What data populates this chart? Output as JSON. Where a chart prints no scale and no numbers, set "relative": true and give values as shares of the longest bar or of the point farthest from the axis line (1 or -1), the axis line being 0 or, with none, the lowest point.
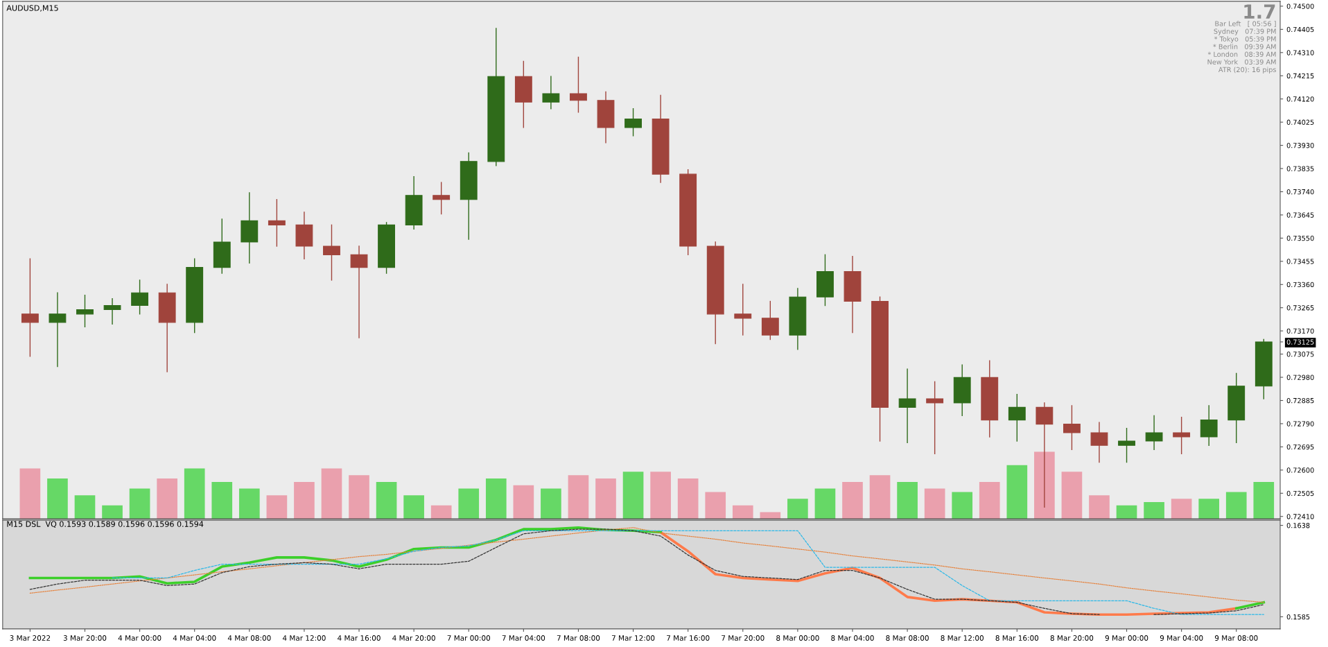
{
  "chart_data": [
    {
      "type": "candlestick",
      "title": "AUDUSD,M15",
      "ohlc": [
        [
          0.73239,
          0.73465,
          0.73066,
          0.73205
        ],
        [
          0.73205,
          0.73326,
          0.73024,
          0.73239
        ],
        [
          0.73239,
          0.73316,
          0.73187,
          0.73257
        ],
        [
          0.73257,
          0.73302,
          0.73198,
          0.73274
        ],
        [
          0.73274,
          0.73378,
          0.73239,
          0.73326
        ],
        [
          0.73326,
          0.73361,
          0.73003,
          0.73205
        ],
        [
          0.73205,
          0.73465,
          0.73163,
          0.7343
        ],
        [
          0.7343,
          0.73628,
          0.73406,
          0.73534
        ],
        [
          0.73534,
          0.73736,
          0.73448,
          0.73621
        ],
        [
          0.73621,
          0.73708,
          0.73517,
          0.73604
        ],
        [
          0.73604,
          0.73656,
          0.73465,
          0.73517
        ],
        [
          0.73517,
          0.73604,
          0.73378,
          0.73482
        ],
        [
          0.73482,
          0.73517,
          0.73142,
          0.7343
        ],
        [
          0.7343,
          0.73614,
          0.73406,
          0.73604
        ],
        [
          0.73604,
          0.73802,
          0.73587,
          0.73725
        ],
        [
          0.73725,
          0.73778,
          0.73649,
          0.73708
        ],
        [
          0.73708,
          0.73899,
          0.73545,
          0.73864
        ],
        [
          0.73864,
          0.74409,
          0.73847,
          0.74212
        ],
        [
          0.74212,
          0.74274,
          0.74003,
          0.74107
        ],
        [
          0.74107,
          0.74212,
          0.7408,
          0.74142
        ],
        [
          0.74142,
          0.74291,
          0.74066,
          0.74114
        ],
        [
          0.74114,
          0.74149,
          0.73941,
          0.74003
        ],
        [
          0.74003,
          0.7408,
          0.73969,
          0.74038
        ],
        [
          0.74038,
          0.74135,
          0.73778,
          0.73812
        ],
        [
          0.73812,
          0.7383,
          0.73482,
          0.73517
        ],
        [
          0.73517,
          0.73534,
          0.73118,
          0.73239
        ],
        [
          0.73239,
          0.73361,
          0.73153,
          0.73222
        ],
        [
          0.73222,
          0.73291,
          0.73135,
          0.73153
        ],
        [
          0.73153,
          0.73344,
          0.73094,
          0.73309
        ],
        [
          0.73309,
          0.73482,
          0.73274,
          0.73413
        ],
        [
          0.73413,
          0.73475,
          0.73163,
          0.73291
        ],
        [
          0.73291,
          0.73309,
          0.72719,
          0.72857
        ],
        [
          0.72857,
          0.73014,
          0.72712,
          0.72892
        ],
        [
          0.72892,
          0.72962,
          0.72667,
          0.72875
        ],
        [
          0.72875,
          0.73031,
          0.72823,
          0.72979
        ],
        [
          0.72979,
          0.73048,
          0.72736,
          0.72805
        ],
        [
          0.72805,
          0.7291,
          0.72719,
          0.72857
        ],
        [
          0.72857,
          0.72875,
          0.72448,
          0.72788
        ],
        [
          0.72788,
          0.72864,
          0.72684,
          0.72753
        ],
        [
          0.72753,
          0.72795,
          0.72632,
          0.72701
        ],
        [
          0.72701,
          0.72771,
          0.72632,
          0.72719
        ],
        [
          0.72719,
          0.72823,
          0.72684,
          0.72753
        ],
        [
          0.72753,
          0.72816,
          0.72667,
          0.72736
        ],
        [
          0.72736,
          0.72864,
          0.72701,
          0.72805
        ],
        [
          0.72805,
          0.72996,
          0.72712,
          0.72944
        ],
        [
          0.72944,
          0.73135,
          0.72892,
          0.73125
        ]
      ],
      "colors": [
        "#a0443c",
        "#2f6b1a",
        "#2f6b1a",
        "#2f6b1a",
        "#2f6b1a",
        "#a0443c",
        "#2f6b1a",
        "#2f6b1a",
        "#2f6b1a",
        "#a0443c",
        "#a0443c",
        "#a0443c",
        "#a0443c",
        "#2f6b1a",
        "#2f6b1a",
        "#a0443c",
        "#2f6b1a",
        "#2f6b1a",
        "#a0443c",
        "#2f6b1a",
        "#a0443c",
        "#a0443c",
        "#2f6b1a",
        "#a0443c",
        "#a0443c",
        "#a0443c",
        "#a0443c",
        "#a0443c",
        "#2f6b1a",
        "#2f6b1a",
        "#a0443c",
        "#a0443c",
        "#2f6b1a",
        "#a0443c",
        "#2f6b1a",
        "#a0443c",
        "#2f6b1a",
        "#a0443c",
        "#a0443c",
        "#a0443c",
        "#2f6b1a",
        "#2f6b1a",
        "#a0443c",
        "#2f6b1a",
        "#2f6b1a",
        "#2f6b1a"
      ],
      "ylim": [
        0.724,
        0.7452
      ],
      "yticks": [
        {
          "value": 0.745,
          "label": "0.74500"
        },
        0.74405,
        {
          "value": 0.7431,
          "label": "0.74310"
        },
        0.74215,
        {
          "value": 0.7412,
          "label": "0.74120"
        },
        0.74025,
        {
          "value": 0.7393,
          "label": "0.73930"
        },
        0.73835,
        {
          "value": 0.7374,
          "label": "0.73740"
        },
        0.73645,
        {
          "value": 0.7355,
          "label": "0.73550"
        },
        0.73455,
        {
          "value": 0.7336,
          "label": "0.73360"
        },
        0.73265,
        {
          "value": 0.7317,
          "label": "0.73170"
        },
        {
          "value": 0.73125,
          "label": "0.73125"
        },
        0.73075,
        {
          "value": 0.7298,
          "label": "0.72980"
        },
        0.72885,
        {
          "value": 0.7279,
          "label": "0.72790"
        },
        0.72695,
        {
          "value": 0.726,
          "label": "0.72600"
        },
        0.72505,
        {
          "value": 0.7241,
          "label": "0.72410"
        }
      ],
      "annotations": [
        "1.7",
        "Bar Left   [ 05:56 ]",
        "Sydney   07:39 PM",
        "* Tokyo   05:39 PM",
        "* Berlin   09:39 AM",
        "* London   08:39 AM",
        "New York   03:39 AM",
        "ATR (20): 16 pips"
      ]
    },
    {
      "type": "bar",
      "relative": true,
      "values": [
        0.75,
        0.6,
        0.35,
        0.2,
        0.45,
        0.6,
        0.75,
        0.55,
        0.45,
        0.35,
        0.55,
        0.75,
        0.65,
        0.55,
        0.35,
        0.2,
        0.45,
        0.6,
        0.5,
        0.45,
        0.65,
        0.6,
        0.7,
        0.7,
        0.6,
        0.4,
        0.2,
        0.1,
        0.3,
        0.45,
        0.55,
        0.65,
        0.55,
        0.45,
        0.4,
        0.55,
        0.8,
        1.0,
        0.7,
        0.35,
        0.2,
        0.25,
        0.3,
        0.3,
        0.4,
        0.55
      ],
      "colors": [
        "#eaa0ad",
        "#66d866",
        "#66d866",
        "#66d866",
        "#66d866",
        "#eaa0ad",
        "#66d866",
        "#66d866",
        "#66d866",
        "#eaa0ad",
        "#eaa0ad",
        "#eaa0ad",
        "#eaa0ad",
        "#66d866",
        "#66d866",
        "#eaa0ad",
        "#66d866",
        "#66d866",
        "#eaa0ad",
        "#66d866",
        "#eaa0ad",
        "#eaa0ad",
        "#66d866",
        "#eaa0ad",
        "#eaa0ad",
        "#eaa0ad",
        "#eaa0ad",
        "#eaa0ad",
        "#66d866",
        "#66d866",
        "#eaa0ad",
        "#eaa0ad",
        "#66d866",
        "#eaa0ad",
        "#66d866",
        "#eaa0ad",
        "#66d866",
        "#eaa0ad",
        "#eaa0ad",
        "#eaa0ad",
        "#66d866",
        "#66d866",
        "#eaa0ad",
        "#66d866",
        "#66d866",
        "#66d866"
      ]
    },
    {
      "type": "line",
      "title": "M15 DSL  VQ 0.1593 0.1589 0.1596 0.1596 0.1594",
      "categories": [
        "3 Mar 2022",
        null,
        "3 Mar 20:00",
        null,
        "4 Mar 00:00",
        null,
        "4 Mar 04:00",
        null,
        "4 Mar 08:00",
        null,
        "4 Mar 12:00",
        null,
        "4 Mar 16:00",
        null,
        "4 Mar 20:00",
        null,
        "7 Mar 00:00",
        null,
        "7 Mar 04:00",
        null,
        "7 Mar 08:00",
        null,
        "7 Mar 12:00",
        null,
        "7 Mar 16:00",
        null,
        "7 Mar 20:00",
        null,
        "8 Mar 00:00",
        null,
        "8 Mar 04:00",
        null,
        "8 Mar 08:00",
        null,
        "8 Mar 12:00",
        null,
        "8 Mar 16:00",
        null,
        "8 Mar 20:00",
        null,
        "9 Mar 00:00",
        null,
        "9 Mar 04:00",
        null,
        "9 Mar 08:00",
        null
      ],
      "ylim": [
        0.1578,
        0.1641
      ],
      "yticks": [
        0.1638,
        0.1585
      ],
      "series": [
        {
          "type": "line",
          "color": "#e6803a",
          "line_style": "dotted",
          "values": [
            0.15987,
            0.16005,
            0.16022,
            0.1604,
            0.16058,
            0.16075,
            0.16093,
            0.16111,
            0.16128,
            0.16146,
            0.16164,
            0.16181,
            0.16199,
            0.16212,
            0.1623,
            0.16247,
            0.16265,
            0.16283,
            0.163,
            0.16318,
            0.16336,
            0.16353,
            0.16367,
            0.16336,
            0.16318,
            0.163,
            0.16278,
            0.16261,
            0.16243,
            0.16225,
            0.16203,
            0.16186,
            0.16168,
            0.1615,
            0.16128,
            0.16111,
            0.16093,
            0.16075,
            0.16058,
            0.1604,
            0.16018,
            0.16,
            0.15983,
            0.15965,
            0.15947,
            0.15934
          ]
        },
        {
          "type": "line",
          "color": "#2ab8e8",
          "line_style": "dashed",
          "values": [
            null,
            null,
            null,
            0.16075,
            0.16075,
            0.16075,
            0.16119,
            0.16155,
            0.16155,
            0.16155,
            0.16155,
            0.16155,
            0.16155,
            0.16186,
            0.1623,
            0.16252,
            0.16261,
            0.16296,
            0.16349,
            0.16349,
            0.16349,
            0.16349,
            0.16349,
            0.16349,
            0.16349,
            0.16349,
            0.16349,
            0.16349,
            0.16349,
            0.16137,
            0.16137,
            0.16137,
            0.16137,
            0.16137,
            0.16031,
            0.15943,
            0.15943,
            0.15943,
            0.15943,
            0.15943,
            0.15943,
            0.15899,
            0.15863,
            0.15863,
            0.15863,
            0.15863
          ]
        },
        {
          "type": "line",
          "color": "#333333",
          "line_style": "dashed",
          "values": [
            0.16009,
            0.1604,
            0.16062,
            0.16062,
            0.16062,
            0.16031,
            0.1604,
            0.16106,
            0.16141,
            0.16155,
            0.16164,
            0.16155,
            0.16128,
            0.16155,
            0.16155,
            0.16155,
            0.16172,
            0.16252,
            0.16331,
            0.16349,
            0.16358,
            0.16358,
            0.16349,
            0.16318,
            0.16208,
            0.16119,
            0.16084,
            0.16075,
            0.16066,
            0.16119,
            0.16119,
            0.16075,
            0.16009,
            0.15952,
            0.15952,
            0.15943,
            0.15934,
            0.15899,
            0.15868,
            0.15863,
            null,
            0.15863,
            0.15868,
            0.15872,
            0.15885,
            0.15921
          ]
        },
        {
          "type": "line",
          "color": "#ff7a4a",
          "line_style": "solid",
          "values": [
            null,
            null,
            null,
            null,
            null,
            null,
            null,
            null,
            null,
            null,
            null,
            null,
            null,
            null,
            null,
            null,
            null,
            null,
            null,
            null,
            null,
            null,
            null,
            0.1634,
            0.1623,
            0.16097,
            0.16075,
            0.16066,
            0.16058,
            0.16102,
            0.16133,
            0.16075,
            0.15965,
            0.15943,
            0.15952,
            0.15943,
            0.15934,
            0.15876,
            0.15868,
            0.15863,
            0.15863,
            0.15868,
            0.15872,
            0.15876,
            0.15899,
            null
          ]
        },
        {
          "type": "line",
          "color": "#3ccf2a",
          "line_style": "solid",
          "values": [
            0.16075,
            0.16075,
            0.16075,
            0.16075,
            0.16084,
            0.16044,
            0.16053,
            0.16141,
            0.16164,
            0.16194,
            0.16194,
            0.16177,
            0.16141,
            0.16181,
            0.16243,
            0.16252,
            0.16252,
            0.16296,
            0.16358,
            0.16358,
            0.16367,
            0.16353,
            0.16349,
            0.1634,
            null,
            null,
            null,
            null,
            null,
            null,
            null,
            null,
            null,
            null,
            null,
            null,
            null,
            null,
            null,
            null,
            null,
            null,
            null,
            null,
            0.15899,
            0.15934
          ]
        }
      ]
    }
  ]
}
